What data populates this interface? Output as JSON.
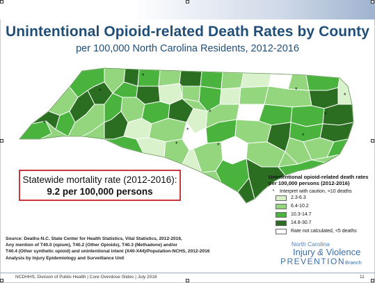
{
  "title": "Unintentional Opioid-related Death Rates by County",
  "subtitle": "per 100,000 North Carolina Residents, 2012-2016",
  "statewide": {
    "line1": "Statewide mortality rate (2012-2016):",
    "line2": "9.2 per 100,000 persons"
  },
  "legend": {
    "title": "Unintentional opioid-related death rates per 100,000 persons (2012-2016)",
    "caution_marker": "*",
    "caution_note": "Interpret with caution, <10 deaths",
    "items": [
      {
        "label": "2.3-6.3",
        "color": "#d9f2cc"
      },
      {
        "label": "6.4-10.2",
        "color": "#93d67e"
      },
      {
        "label": "10.3-14.7",
        "color": "#49b33d"
      },
      {
        "label": "14.8-30.7",
        "color": "#2b6e22"
      },
      {
        "label": "Rate not calculated, <5 deaths",
        "color": "#ffffff"
      }
    ]
  },
  "source_lines": [
    "Source: Deaths-N.C. State Center for Health Statistics, Vital Statistics, 2012-2016,",
    "Any mention of T40.0 (opium), T40.2 (Other Opioids), T40.3 (Methadone) and/or",
    "T40.4 (Other synthetic opioid) and unintentional intent (X40-X44)/Population-NCHS, 2012-2016",
    "Analysis by Injury Epidemiology and Surveillance Unit"
  ],
  "logo": {
    "line1": "North Carolina",
    "line2_a": "Injury",
    "line2_amp": "&",
    "line2_b": "Violence",
    "line3": "PREVENTION",
    "line3_small": "Branch"
  },
  "footer": "NCDHHS, Division of Public Health | Core Overdose Slides | July 2018",
  "page_number": "11",
  "colors": {
    "title": "#1f4e79",
    "rate_box_border": "#c9373c",
    "county_border": "#ffffff"
  }
}
